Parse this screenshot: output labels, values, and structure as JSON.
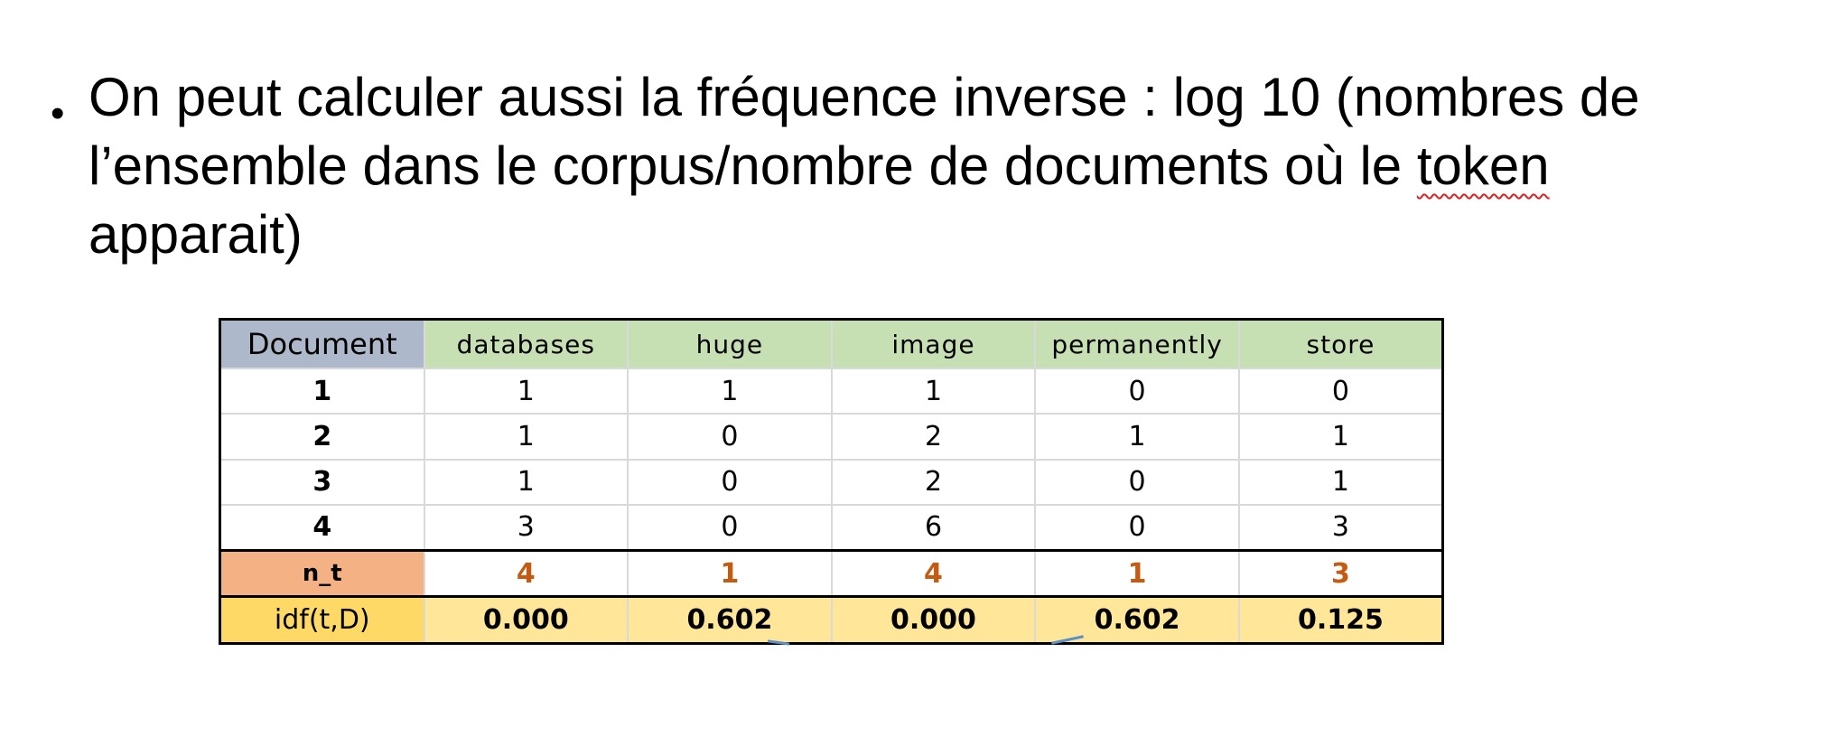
{
  "slide": {
    "bullet": {
      "line1": "On peut calculer aussi la fréquence inverse : log 10 (nombres de",
      "line2_before": "l’ensemble dans le corpus/nombre de documents où le ",
      "line2_flagged_word": "token",
      "line3": "apparait)"
    }
  },
  "table": {
    "header": [
      "Document",
      "databases",
      "huge",
      "image",
      "permanently",
      "store"
    ],
    "rows": [
      [
        "1",
        "1",
        "1",
        "1",
        "0",
        "0"
      ],
      [
        "2",
        "1",
        "0",
        "2",
        "1",
        "1"
      ],
      [
        "3",
        "1",
        "0",
        "2",
        "0",
        "1"
      ],
      [
        "4",
        "3",
        "0",
        "6",
        "0",
        "3"
      ]
    ],
    "nt_row": [
      "n_t",
      "4",
      "1",
      "4",
      "1",
      "3"
    ],
    "idf_row": [
      "idf(t,D)",
      "0.000",
      "0.602",
      "0.000",
      "0.602",
      "0.125"
    ]
  },
  "colors": {
    "header_green": "#c6e0b4",
    "header_blue": "#adb9ca",
    "nt_label": "#f4b183",
    "nt_values": "#c55a11",
    "idf_label": "#ffd966",
    "idf_row": "#ffe699",
    "spellcheck": "#e02020"
  }
}
